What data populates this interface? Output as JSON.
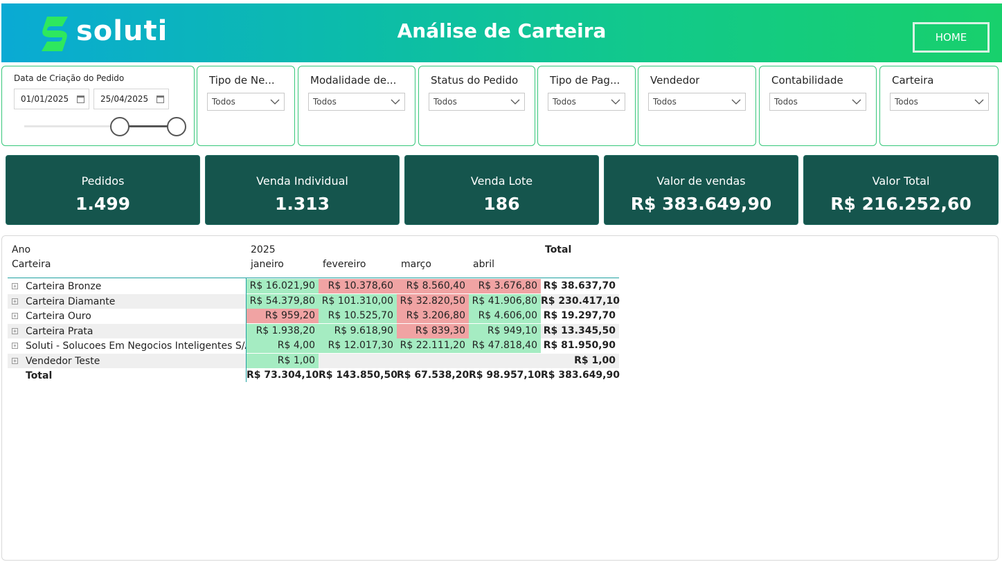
{
  "header": {
    "logo_text": "soluti",
    "title": "Análise de Carteira",
    "home_label": "HOME",
    "brand_colors": {
      "gradient_start": "#0aaad4",
      "gradient_end": "#18d06c",
      "logo_green": "#2ee85e"
    }
  },
  "filters": {
    "date": {
      "title": "Data de Criação do Pedido",
      "start": "01/01/2025",
      "end": "25/04/2025"
    },
    "dropdowns": [
      {
        "title": "Tipo de Ne...",
        "value": "Todos"
      },
      {
        "title": "Modalidade de...",
        "value": "Todos"
      },
      {
        "title": "Status do Pedido",
        "value": "Todos"
      },
      {
        "title": "Tipo de Pag...",
        "value": "Todos"
      },
      {
        "title": "Vendedor",
        "value": "Todos"
      },
      {
        "title": "Contabilidade",
        "value": "Todos"
      },
      {
        "title": "Carteira",
        "value": "Todos"
      }
    ]
  },
  "kpis": [
    {
      "label": "Pedidos",
      "value": "1.499"
    },
    {
      "label": "Venda Individual",
      "value": "1.313"
    },
    {
      "label": "Venda Lote",
      "value": "186"
    },
    {
      "label": "Valor de vendas",
      "value": "R$ 383.649,90"
    },
    {
      "label": "Valor Total",
      "value": "R$ 216.252,60"
    }
  ],
  "matrix": {
    "row_header_1": "Ano",
    "row_header_2": "Carteira",
    "year": "2025",
    "months": [
      "janeiro",
      "fevereiro",
      "março",
      "abril"
    ],
    "total_header": "Total",
    "rows": [
      {
        "label": "Carteira Bronze",
        "values": [
          "R$ 16.021,90",
          "R$ 10.378,60",
          "R$ 8.560,40",
          "R$ 3.676,80"
        ],
        "status": [
          "green",
          "red",
          "red",
          "red"
        ],
        "total": "R$ 38.637,70"
      },
      {
        "label": "Carteira Diamante",
        "values": [
          "R$ 54.379,80",
          "R$ 101.310,00",
          "R$ 32.820,50",
          "R$ 41.906,80"
        ],
        "status": [
          "green",
          "green",
          "red",
          "green"
        ],
        "total": "R$ 230.417,10"
      },
      {
        "label": "Carteira Ouro",
        "values": [
          "R$ 959,20",
          "R$ 10.525,70",
          "R$ 3.206,80",
          "R$ 4.606,00"
        ],
        "status": [
          "red",
          "green",
          "red",
          "green"
        ],
        "total": "R$ 19.297,70"
      },
      {
        "label": "Carteira Prata",
        "values": [
          "R$ 1.938,20",
          "R$ 9.618,90",
          "R$ 839,30",
          "R$ 949,10"
        ],
        "status": [
          "green",
          "green",
          "red",
          "green"
        ],
        "total": "R$ 13.345,50"
      },
      {
        "label": "Soluti - Solucoes Em Negocios Inteligentes S/A",
        "values": [
          "R$ 4,00",
          "R$ 12.017,30",
          "R$ 22.111,20",
          "R$ 47.818,40"
        ],
        "status": [
          "green",
          "green",
          "green",
          "green"
        ],
        "total": "R$ 81.950,90"
      },
      {
        "label": "Vendedor Teste",
        "values": [
          "R$ 1,00",
          "",
          "",
          ""
        ],
        "status": [
          "green",
          "none",
          "none",
          "none"
        ],
        "total": "R$ 1,00"
      }
    ],
    "total_row": {
      "label": "Total",
      "values": [
        "R$ 73.304,10",
        "R$ 143.850,50",
        "R$ 67.538,20",
        "R$ 98.957,10"
      ],
      "total": "R$ 383.649,90"
    },
    "colors": {
      "positive": "#a5ecc2",
      "negative": "#f0a3a3"
    }
  }
}
